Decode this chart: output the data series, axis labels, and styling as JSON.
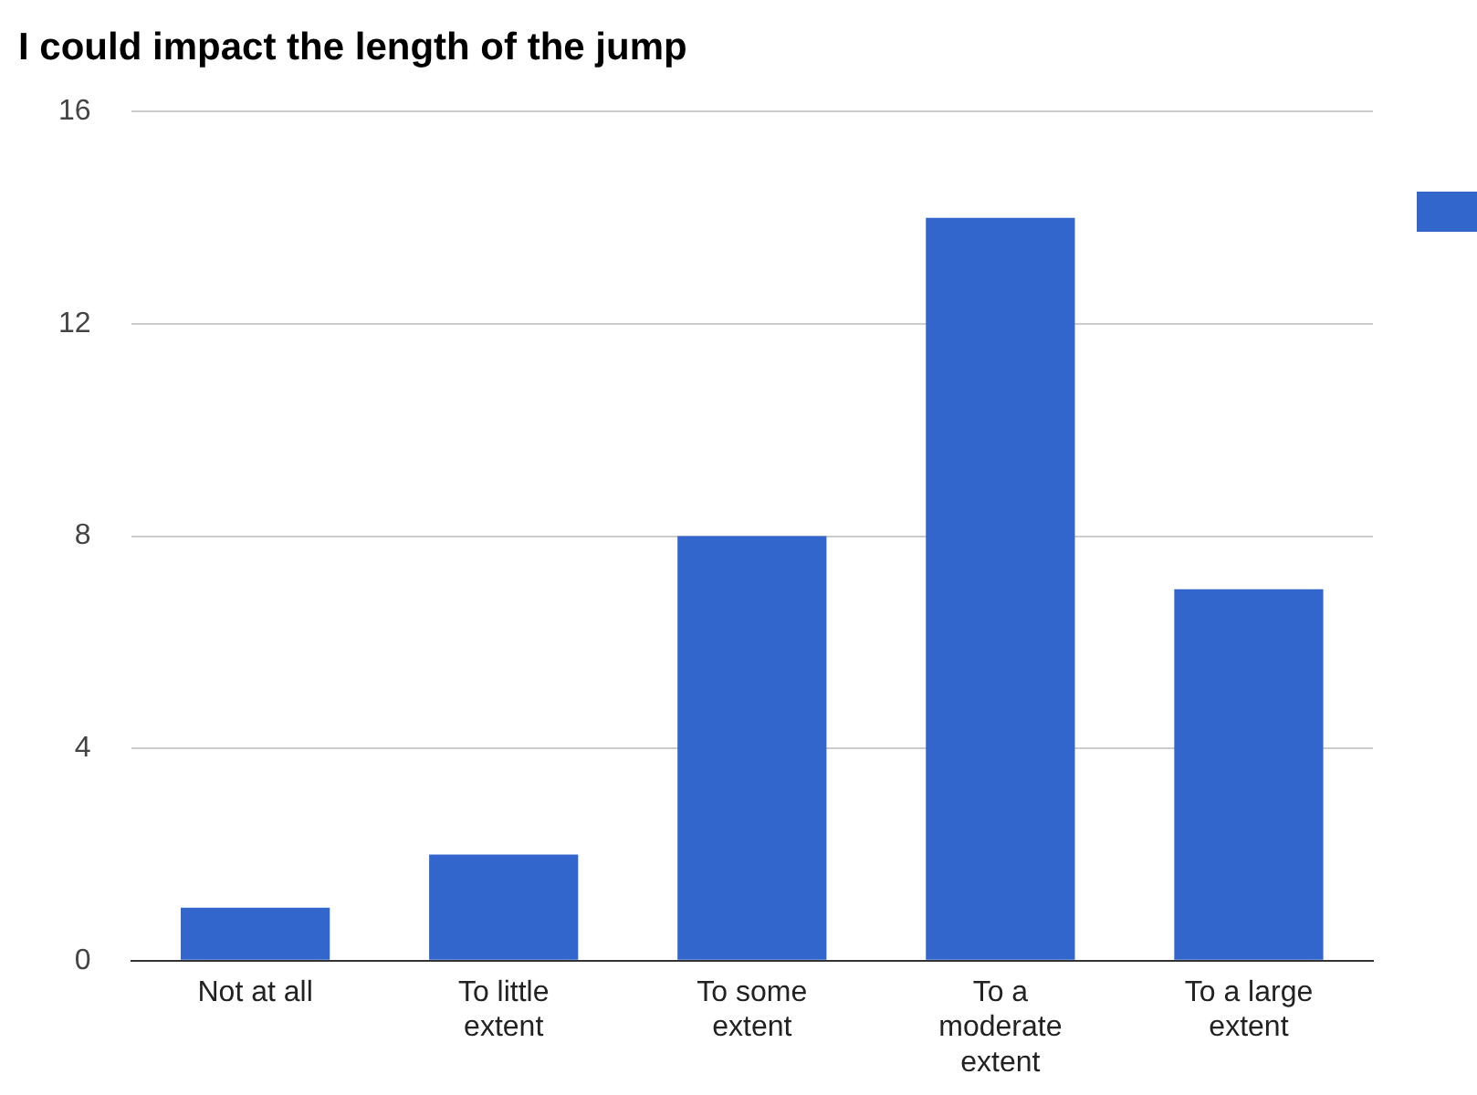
{
  "chart_data": {
    "type": "bar",
    "title": "I could impact the length of the jump",
    "categories": [
      "Not at all",
      "To little extent",
      "To some extent",
      "To a moderate extent",
      "To a large extent"
    ],
    "series": [
      {
        "color": "#3366cc",
        "values": [
          1,
          2,
          8,
          14,
          7
        ]
      }
    ],
    "ylim": [
      0,
      16
    ],
    "yticks": [
      0,
      4,
      8,
      12,
      16
    ],
    "grid": "y"
  }
}
